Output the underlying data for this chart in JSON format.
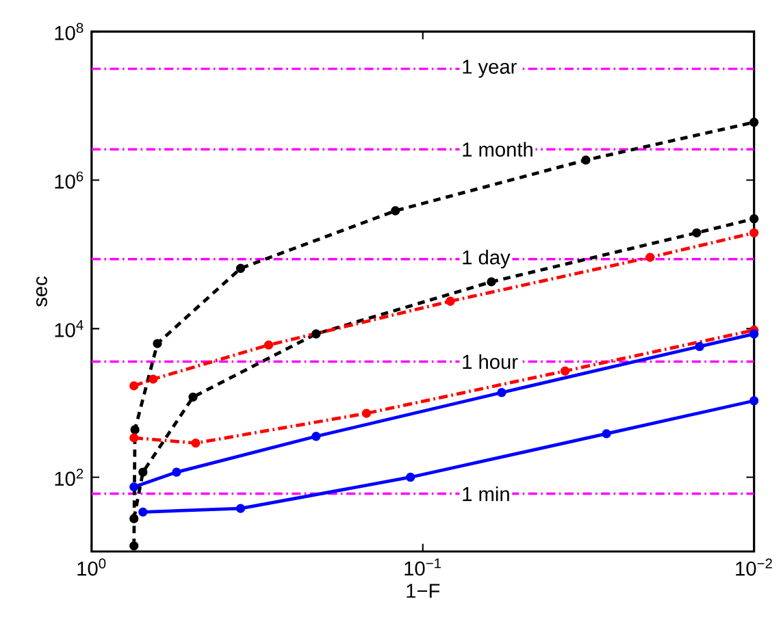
{
  "chart_data": {
    "type": "line",
    "xlabel": "1−F",
    "ylabel": "sec",
    "log": "xy",
    "xlim": [
      1,
      0.01
    ],
    "xticks": [
      {
        "value": 1,
        "label": "10$^{0}$"
      },
      {
        "value": 0.1,
        "label": "10$^{−1}$"
      },
      {
        "value": 0.01,
        "label": "10$^{−2}$"
      }
    ],
    "ylim": [
      10,
      100000000
    ],
    "yticks": [
      {
        "value": 100,
        "label": "10$^{2}$"
      },
      {
        "value": 10000,
        "label": "10$^{4}$"
      },
      {
        "value": 1000000,
        "label": "10$^{6}$"
      },
      {
        "value": 100000000,
        "label": "10$^{8}$"
      }
    ],
    "grid": false,
    "marker": "circle",
    "series": [
      {
        "color": "#000000",
        "line_style": "dashed",
        "x": [
          0.745,
          0.74,
          0.633,
          0.355,
          0.121,
          0.0322,
          0.01
        ],
        "values": [
          11.9,
          437,
          6310,
          64800,
          387000,
          1860000,
          6000000
        ]
      },
      {
        "color": "#000000",
        "line_style": "dashed",
        "x": [
          0.745,
          0.7,
          0.494,
          0.21,
          0.0621,
          0.0149,
          0.01
        ],
        "values": [
          27.7,
          117,
          1200,
          8500,
          42700,
          195000,
          302000
        ]
      },
      {
        "color": "#ff0000",
        "line_style": "dashdot",
        "x": [
          0.745,
          0.652,
          0.292,
          0.0826,
          0.0206,
          0.01
        ],
        "values": [
          1700,
          2090,
          6030,
          23400,
          91300,
          195000
        ]
      },
      {
        "color": "#ff0000",
        "line_style": "dashdot",
        "x": [
          0.745,
          0.485,
          0.148,
          0.0372,
          0.01
        ],
        "values": [
          339,
          288,
          724,
          2690,
          9550
        ]
      },
      {
        "color": "#0000ff",
        "line_style": "solid",
        "x": [
          0.745,
          0.554,
          0.21,
          0.0578,
          0.0146,
          0.01
        ],
        "values": [
          74,
          117,
          355,
          1380,
          5750,
          8500
        ]
      },
      {
        "color": "#0000ff",
        "line_style": "solid",
        "x": [
          0.7,
          0.355,
          0.109,
          0.0279,
          0.01
        ],
        "values": [
          34,
          38,
          100,
          385,
          1070
        ]
      }
    ],
    "ref_lines": [
      {
        "axis": "y",
        "value": 60,
        "label": "1 min",
        "color": "#ff00ff",
        "line_style": "dashdot"
      },
      {
        "axis": "y",
        "value": 3600,
        "label": "1 hour",
        "color": "#ff00ff",
        "line_style": "dashdot"
      },
      {
        "axis": "y",
        "value": 86400,
        "label": "1 day",
        "color": "#ff00ff",
        "line_style": "dashdot"
      },
      {
        "axis": "y",
        "value": 2600000,
        "label": "1 month",
        "color": "#ff00ff",
        "line_style": "dashdot"
      },
      {
        "axis": "y",
        "value": 31500000,
        "label": "1 year",
        "color": "#ff00ff",
        "line_style": "dashdot"
      }
    ]
  }
}
